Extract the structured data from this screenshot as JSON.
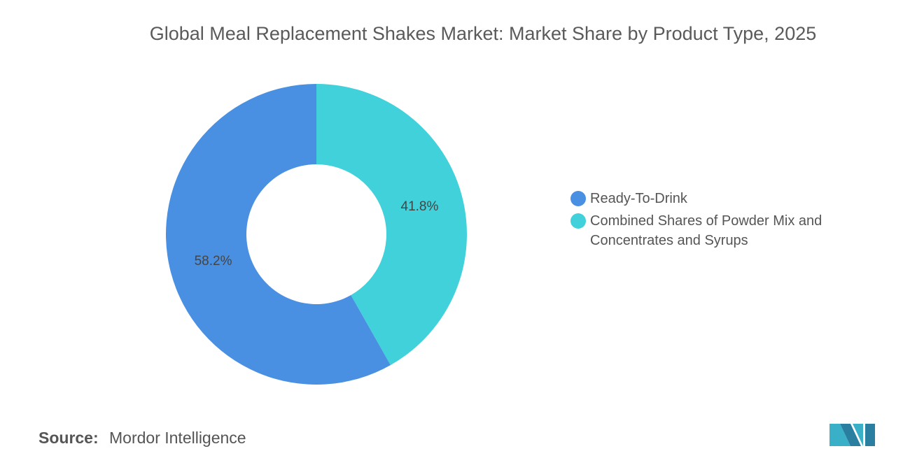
{
  "chart_data": {
    "type": "pie",
    "title": "Global Meal Replacement Shakes Market: Market Share by Product Type, 2025",
    "categories": [
      "Ready-To-Drink",
      "Combined Shares of Powder Mix and Concentrates and Syrups"
    ],
    "values": [
      58.2,
      41.8
    ],
    "value_labels": [
      "58.2%",
      "41.8%"
    ],
    "colors": [
      "#4a90e2",
      "#40d1da"
    ],
    "source_label": "Source:",
    "source": "Mordor Intelligence"
  }
}
